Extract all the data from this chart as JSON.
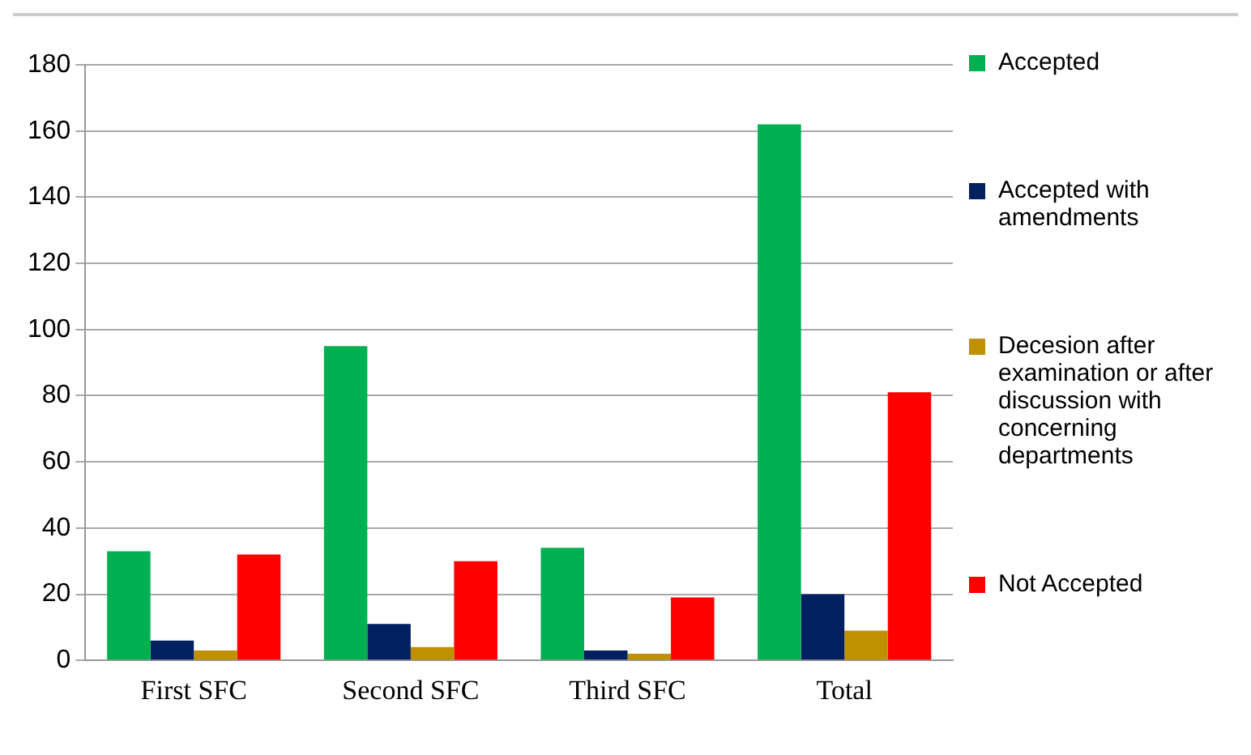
{
  "chart_data": {
    "type": "bar",
    "categories": [
      "First SFC",
      "Second SFC",
      "Third SFC",
      "Total"
    ],
    "series": [
      {
        "name": "Accepted",
        "color": "#00b050",
        "values": [
          33,
          95,
          34,
          162
        ]
      },
      {
        "name": "Accepted with amendments",
        "color": "#002060",
        "values": [
          6,
          11,
          3,
          20
        ]
      },
      {
        "name": "Decesion after examination or after discussion with concerning departments",
        "color": "#bf9000",
        "values": [
          3,
          4,
          2,
          9
        ]
      },
      {
        "name": "Not Accepted",
        "color": "#ff0000",
        "values": [
          32,
          30,
          19,
          81
        ]
      }
    ],
    "ylim": [
      0,
      180
    ],
    "yticks": [
      0,
      20,
      40,
      60,
      80,
      100,
      120,
      140,
      160,
      180
    ],
    "grid": "y",
    "legend": "right"
  }
}
